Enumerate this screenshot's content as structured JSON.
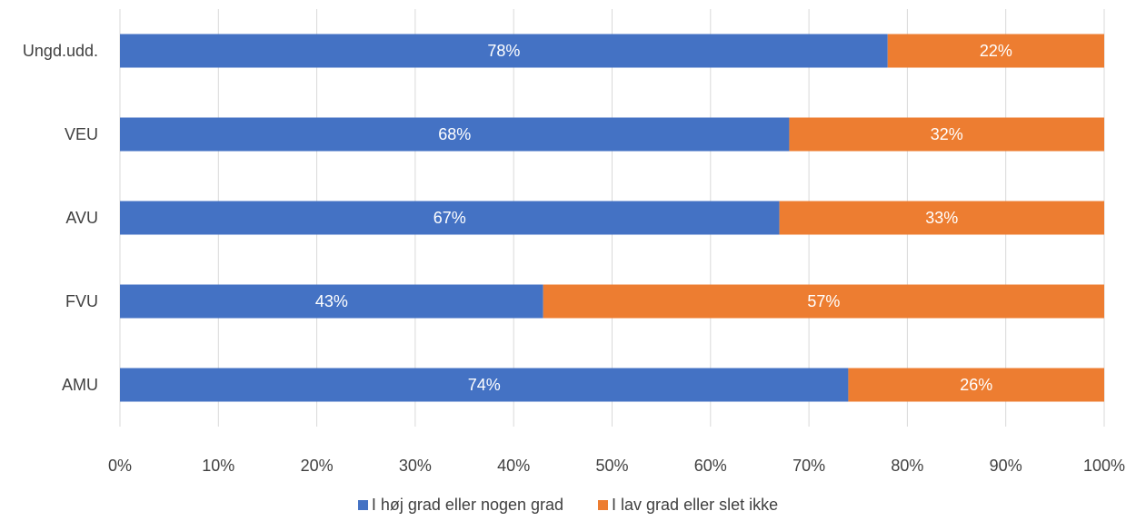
{
  "chart_data": {
    "type": "bar",
    "orientation": "horizontal",
    "stacked": true,
    "categories": [
      "Ungd.udd.",
      "VEU",
      "AVU",
      "FVU",
      "AMU"
    ],
    "series": [
      {
        "name": "I høj grad eller nogen grad",
        "color": "#4472C4",
        "values": [
          78,
          68,
          67,
          43,
          74
        ],
        "labels": [
          "78%",
          "68%",
          "67%",
          "43%",
          "74%"
        ]
      },
      {
        "name": "I lav grad eller slet ikke",
        "color": "#ED7D31",
        "values": [
          22,
          32,
          33,
          57,
          26
        ],
        "labels": [
          "22%",
          "32%",
          "33%",
          "57%",
          "26%"
        ]
      }
    ],
    "xlim": [
      0,
      100
    ],
    "xticks": [
      "0%",
      "10%",
      "20%",
      "30%",
      "40%",
      "50%",
      "60%",
      "70%",
      "80%",
      "90%",
      "100%"
    ],
    "grid": true,
    "legend_position": "bottom"
  }
}
